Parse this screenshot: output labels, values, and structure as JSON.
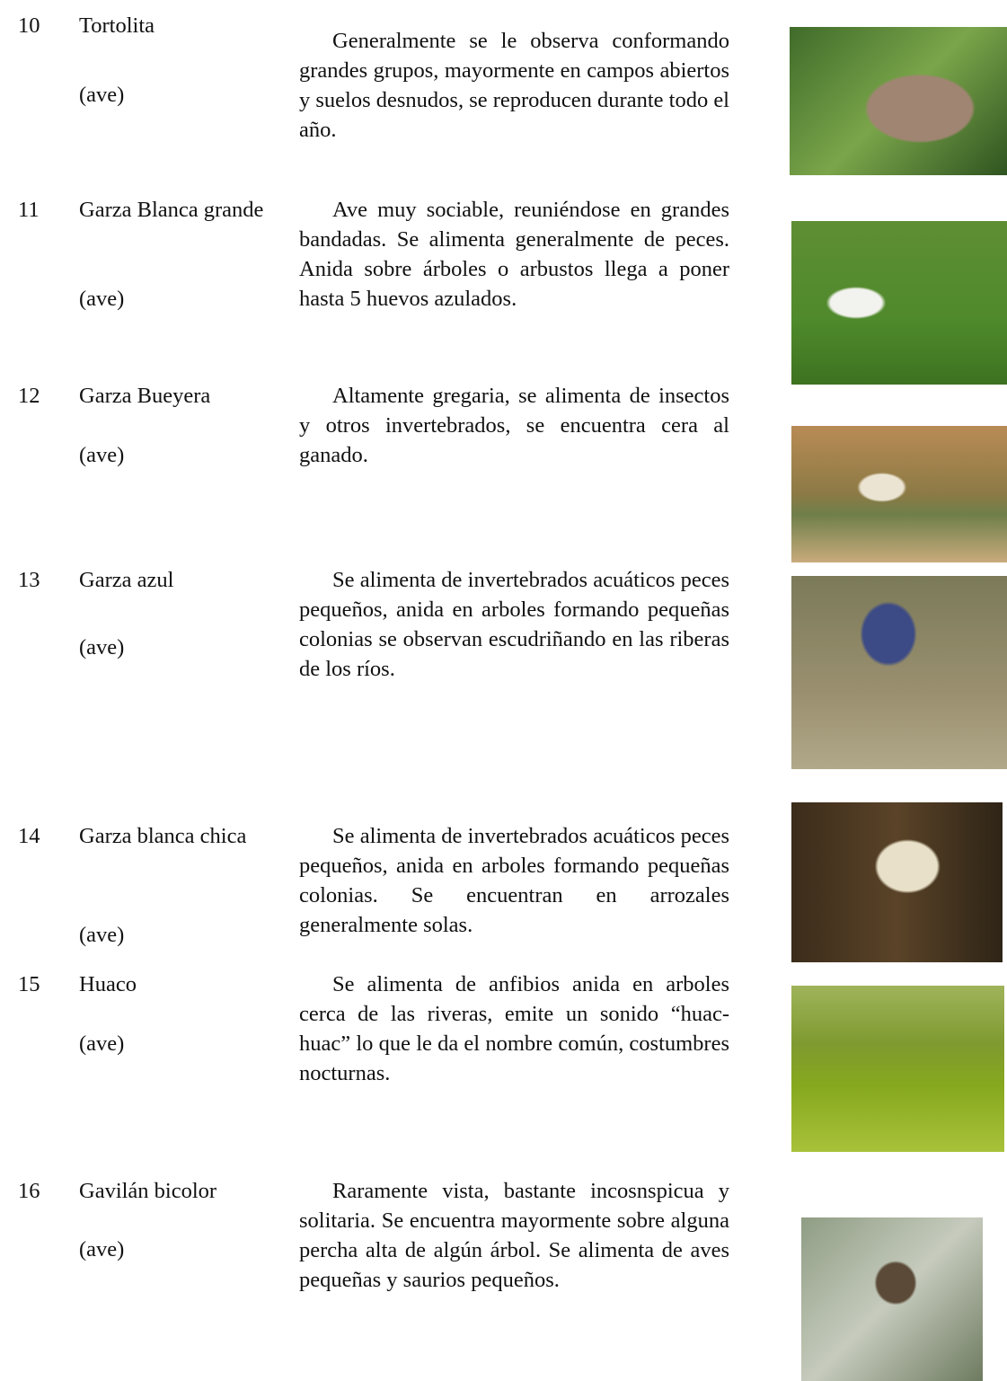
{
  "rows": [
    {
      "number": "10",
      "name": "Tortolita",
      "type": "(ave)",
      "description": "Generalmente se le observa conformando grandes grupos, mayormente en campos abiertos y suelos desnudos, se reproducen durante todo el año."
    },
    {
      "number": "11",
      "name": "Garza Blanca grande",
      "type": "(ave)",
      "description": "Ave muy sociable, reuniéndose en grandes bandadas. Se alimenta generalmente de peces. Anida sobre árboles o arbustos llega a poner hasta 5 huevos azulados."
    },
    {
      "number": "12",
      "name": "Garza Bueyera",
      "type": "(ave)",
      "description": "Altamente gregaria, se alimenta de insectos y otros invertebrados, se encuentra cera al ganado."
    },
    {
      "number": "13",
      "name": "Garza azul",
      "type": "(ave)",
      "description": "Se alimenta de invertebrados acuáticos peces pequeños, anida en arboles formando pequeñas colonias se observan escudriñando en las riberas de los ríos."
    },
    {
      "number": "14",
      "name": "Garza blanca chica",
      "type": "(ave)",
      "description": "Se alimenta de invertebrados acuáticos peces pequeños, anida en arboles formando pequeñas colonias. Se encuentran en arrozales generalmente solas."
    },
    {
      "number": "15",
      "name": "Huaco",
      "type": "(ave)",
      "description": "Se alimenta de anfibios anida en arboles cerca de las riveras, emite un sonido “huac- huac” lo que le da el nombre común, costumbres nocturnas."
    },
    {
      "number": "16",
      "name": "Gavilán bicolor",
      "type": "(ave)",
      "description": "Raramente vista, bastante incosnspicua y solitaria. Se encuentra mayormente sobre alguna percha alta de algún árbol. Se alimenta de aves pequeñas y saurios pequeños."
    }
  ]
}
